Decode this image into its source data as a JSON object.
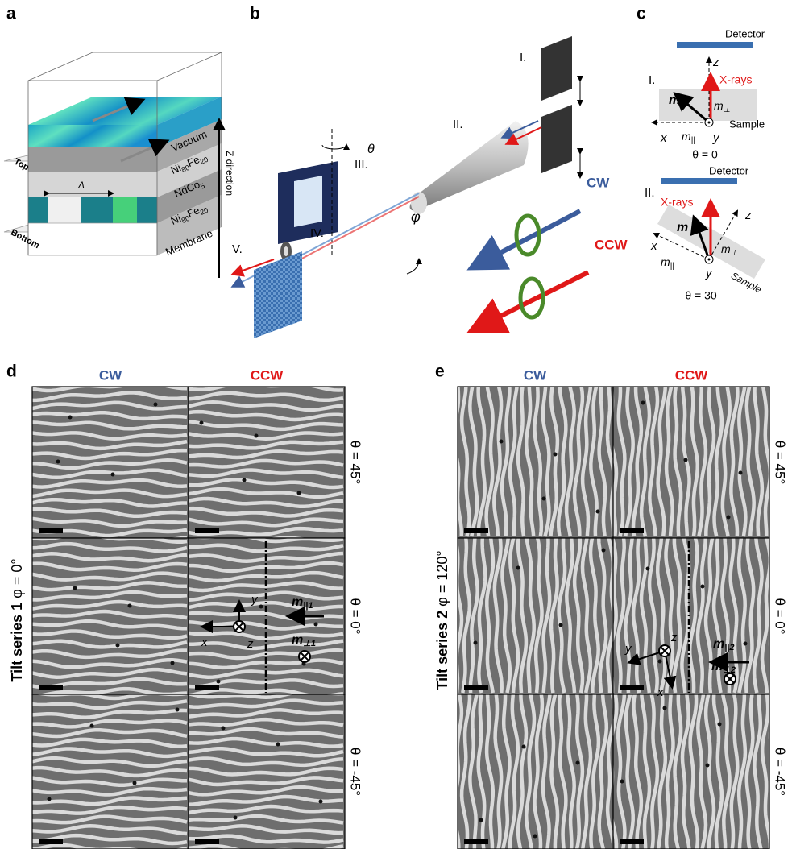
{
  "panel_labels": [
    "a",
    "b",
    "c",
    "d",
    "e"
  ],
  "panel_a": {
    "vacuum": "Vacuum",
    "nife_top": [
      "Ni",
      "80",
      "Fe",
      "20"
    ],
    "ndco": [
      "NdCo",
      "5"
    ],
    "nife_bottom": [
      "Ni",
      "80",
      "Fe",
      "20"
    ],
    "membrane": "Membrane",
    "top": "Top",
    "bottom": "Bottom",
    "lambda": "Λ",
    "z_direction": "Z direction"
  },
  "panel_b": {
    "stages": [
      "I.",
      "II.",
      "III.",
      "IV.",
      "V."
    ],
    "theta": "θ",
    "phi": "φ",
    "cw": "CW",
    "ccw": "CCW"
  },
  "panel_c": {
    "geometry_1": {
      "detector": "Detector",
      "stage": "I.",
      "z": "z",
      "xrays": "X-rays",
      "m": "m",
      "m_perp": [
        "m",
        "⊥"
      ],
      "sample": "Sample",
      "x": "x",
      "m_par": [
        "m",
        "||"
      ],
      "y": "y",
      "angle": "θ = 0"
    },
    "geometry_2": {
      "detector": "Detector",
      "stage": "II.",
      "xrays": "X-rays",
      "z": "z",
      "m": "m",
      "x": "x",
      "m_par": [
        "m",
        "||"
      ],
      "m_perp": [
        "m",
        "⊥"
      ],
      "y": "y",
      "sample": "Sample",
      "angle": "θ = 30"
    }
  },
  "panel_d": {
    "columns": [
      "CW",
      "CCW"
    ],
    "rows": [
      "θ = 45°",
      "θ = 0°",
      "θ = -45°"
    ],
    "series": "Tilt series 1",
    "phi": "φ = 0°",
    "axes": {
      "x": "x",
      "y": "y",
      "z": "z"
    },
    "m_par": [
      "m",
      "||1"
    ],
    "m_perp": [
      "m",
      "⊥1"
    ]
  },
  "panel_e": {
    "columns": [
      "CW",
      "CCW"
    ],
    "rows": [
      "θ = 45°",
      "θ = 0°",
      "θ = -45°"
    ],
    "series": "Tilt series 2",
    "phi": "φ = 120°",
    "axes": {
      "x": "x",
      "y": "y",
      "z": "z"
    },
    "m_par": [
      "m",
      "||2"
    ],
    "m_perp": [
      "m",
      "⊥2"
    ]
  }
}
